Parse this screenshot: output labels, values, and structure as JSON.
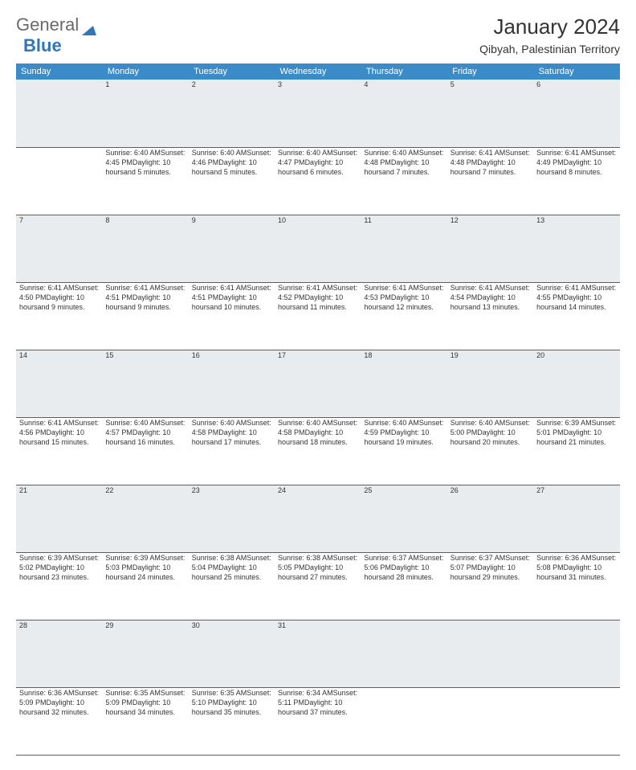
{
  "brand": {
    "part1": "General",
    "part2": "Blue"
  },
  "title": "January 2024",
  "subtitle": "Qibyah, Palestinian Territory",
  "header_bg": "#3b8bc8",
  "rule_color": "#2c6aa0",
  "daynum_bg": "#e9ecef",
  "weekdays": [
    "Sunday",
    "Monday",
    "Tuesday",
    "Wednesday",
    "Thursday",
    "Friday",
    "Saturday"
  ],
  "weeks": [
    [
      null,
      {
        "n": "1",
        "sr": "Sunrise: 6:40 AM",
        "ss": "Sunset: 4:45 PM",
        "d1": "Daylight: 10 hours",
        "d2": "and 5 minutes."
      },
      {
        "n": "2",
        "sr": "Sunrise: 6:40 AM",
        "ss": "Sunset: 4:46 PM",
        "d1": "Daylight: 10 hours",
        "d2": "and 5 minutes."
      },
      {
        "n": "3",
        "sr": "Sunrise: 6:40 AM",
        "ss": "Sunset: 4:47 PM",
        "d1": "Daylight: 10 hours",
        "d2": "and 6 minutes."
      },
      {
        "n": "4",
        "sr": "Sunrise: 6:40 AM",
        "ss": "Sunset: 4:48 PM",
        "d1": "Daylight: 10 hours",
        "d2": "and 7 minutes."
      },
      {
        "n": "5",
        "sr": "Sunrise: 6:41 AM",
        "ss": "Sunset: 4:48 PM",
        "d1": "Daylight: 10 hours",
        "d2": "and 7 minutes."
      },
      {
        "n": "6",
        "sr": "Sunrise: 6:41 AM",
        "ss": "Sunset: 4:49 PM",
        "d1": "Daylight: 10 hours",
        "d2": "and 8 minutes."
      }
    ],
    [
      {
        "n": "7",
        "sr": "Sunrise: 6:41 AM",
        "ss": "Sunset: 4:50 PM",
        "d1": "Daylight: 10 hours",
        "d2": "and 9 minutes."
      },
      {
        "n": "8",
        "sr": "Sunrise: 6:41 AM",
        "ss": "Sunset: 4:51 PM",
        "d1": "Daylight: 10 hours",
        "d2": "and 9 minutes."
      },
      {
        "n": "9",
        "sr": "Sunrise: 6:41 AM",
        "ss": "Sunset: 4:51 PM",
        "d1": "Daylight: 10 hours",
        "d2": "and 10 minutes."
      },
      {
        "n": "10",
        "sr": "Sunrise: 6:41 AM",
        "ss": "Sunset: 4:52 PM",
        "d1": "Daylight: 10 hours",
        "d2": "and 11 minutes."
      },
      {
        "n": "11",
        "sr": "Sunrise: 6:41 AM",
        "ss": "Sunset: 4:53 PM",
        "d1": "Daylight: 10 hours",
        "d2": "and 12 minutes."
      },
      {
        "n": "12",
        "sr": "Sunrise: 6:41 AM",
        "ss": "Sunset: 4:54 PM",
        "d1": "Daylight: 10 hours",
        "d2": "and 13 minutes."
      },
      {
        "n": "13",
        "sr": "Sunrise: 6:41 AM",
        "ss": "Sunset: 4:55 PM",
        "d1": "Daylight: 10 hours",
        "d2": "and 14 minutes."
      }
    ],
    [
      {
        "n": "14",
        "sr": "Sunrise: 6:41 AM",
        "ss": "Sunset: 4:56 PM",
        "d1": "Daylight: 10 hours",
        "d2": "and 15 minutes."
      },
      {
        "n": "15",
        "sr": "Sunrise: 6:40 AM",
        "ss": "Sunset: 4:57 PM",
        "d1": "Daylight: 10 hours",
        "d2": "and 16 minutes."
      },
      {
        "n": "16",
        "sr": "Sunrise: 6:40 AM",
        "ss": "Sunset: 4:58 PM",
        "d1": "Daylight: 10 hours",
        "d2": "and 17 minutes."
      },
      {
        "n": "17",
        "sr": "Sunrise: 6:40 AM",
        "ss": "Sunset: 4:58 PM",
        "d1": "Daylight: 10 hours",
        "d2": "and 18 minutes."
      },
      {
        "n": "18",
        "sr": "Sunrise: 6:40 AM",
        "ss": "Sunset: 4:59 PM",
        "d1": "Daylight: 10 hours",
        "d2": "and 19 minutes."
      },
      {
        "n": "19",
        "sr": "Sunrise: 6:40 AM",
        "ss": "Sunset: 5:00 PM",
        "d1": "Daylight: 10 hours",
        "d2": "and 20 minutes."
      },
      {
        "n": "20",
        "sr": "Sunrise: 6:39 AM",
        "ss": "Sunset: 5:01 PM",
        "d1": "Daylight: 10 hours",
        "d2": "and 21 minutes."
      }
    ],
    [
      {
        "n": "21",
        "sr": "Sunrise: 6:39 AM",
        "ss": "Sunset: 5:02 PM",
        "d1": "Daylight: 10 hours",
        "d2": "and 23 minutes."
      },
      {
        "n": "22",
        "sr": "Sunrise: 6:39 AM",
        "ss": "Sunset: 5:03 PM",
        "d1": "Daylight: 10 hours",
        "d2": "and 24 minutes."
      },
      {
        "n": "23",
        "sr": "Sunrise: 6:38 AM",
        "ss": "Sunset: 5:04 PM",
        "d1": "Daylight: 10 hours",
        "d2": "and 25 minutes."
      },
      {
        "n": "24",
        "sr": "Sunrise: 6:38 AM",
        "ss": "Sunset: 5:05 PM",
        "d1": "Daylight: 10 hours",
        "d2": "and 27 minutes."
      },
      {
        "n": "25",
        "sr": "Sunrise: 6:37 AM",
        "ss": "Sunset: 5:06 PM",
        "d1": "Daylight: 10 hours",
        "d2": "and 28 minutes."
      },
      {
        "n": "26",
        "sr": "Sunrise: 6:37 AM",
        "ss": "Sunset: 5:07 PM",
        "d1": "Daylight: 10 hours",
        "d2": "and 29 minutes."
      },
      {
        "n": "27",
        "sr": "Sunrise: 6:36 AM",
        "ss": "Sunset: 5:08 PM",
        "d1": "Daylight: 10 hours",
        "d2": "and 31 minutes."
      }
    ],
    [
      {
        "n": "28",
        "sr": "Sunrise: 6:36 AM",
        "ss": "Sunset: 5:09 PM",
        "d1": "Daylight: 10 hours",
        "d2": "and 32 minutes."
      },
      {
        "n": "29",
        "sr": "Sunrise: 6:35 AM",
        "ss": "Sunset: 5:09 PM",
        "d1": "Daylight: 10 hours",
        "d2": "and 34 minutes."
      },
      {
        "n": "30",
        "sr": "Sunrise: 6:35 AM",
        "ss": "Sunset: 5:10 PM",
        "d1": "Daylight: 10 hours",
        "d2": "and 35 minutes."
      },
      {
        "n": "31",
        "sr": "Sunrise: 6:34 AM",
        "ss": "Sunset: 5:11 PM",
        "d1": "Daylight: 10 hours",
        "d2": "and 37 minutes."
      },
      null,
      null,
      null
    ]
  ]
}
